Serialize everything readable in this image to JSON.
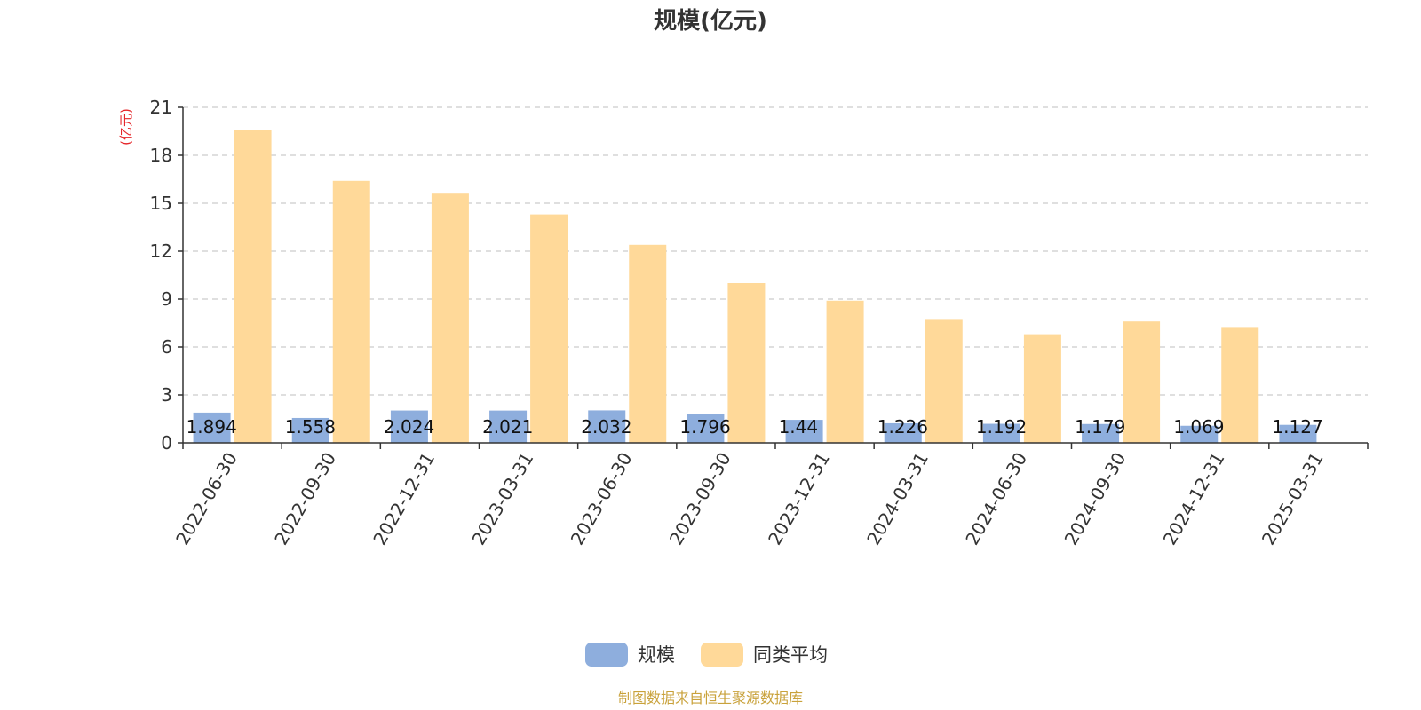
{
  "chart_data": {
    "type": "bar",
    "title": "规模(亿元)",
    "ylabel": "(亿元)",
    "ylim": [
      0,
      21
    ],
    "yticks": [
      0,
      3,
      6,
      9,
      12,
      15,
      18,
      21
    ],
    "grid": true,
    "legend_position": "bottom-center",
    "categories": [
      "2022-06-30",
      "2022-09-30",
      "2022-12-31",
      "2023-03-31",
      "2023-06-30",
      "2023-09-30",
      "2023-12-31",
      "2024-03-31",
      "2024-06-30",
      "2024-09-30",
      "2024-12-31",
      "2025-03-31"
    ],
    "series": [
      {
        "name": "规模",
        "color": "#8eaedd",
        "values": [
          1.894,
          1.558,
          2.024,
          2.021,
          2.032,
          1.796,
          1.44,
          1.226,
          1.192,
          1.179,
          1.069,
          1.127
        ],
        "labels": [
          "1.894",
          "1.558",
          "2.024",
          "2.021",
          "2.032",
          "1.796",
          "1.44",
          "1.226",
          "1.192",
          "1.179",
          "1.069",
          "1.127"
        ]
      },
      {
        "name": "同类平均",
        "color": "#ffd999",
        "values": [
          19.6,
          16.4,
          15.6,
          14.3,
          12.4,
          10.0,
          8.9,
          7.7,
          6.8,
          7.6,
          7.2,
          0
        ]
      }
    ]
  },
  "colors": {
    "unit": "#e5262a",
    "source": "#c9a23b",
    "axis": "#333333",
    "grid": "#cccccc"
  },
  "source_text": "制图数据来自恒生聚源数据库"
}
